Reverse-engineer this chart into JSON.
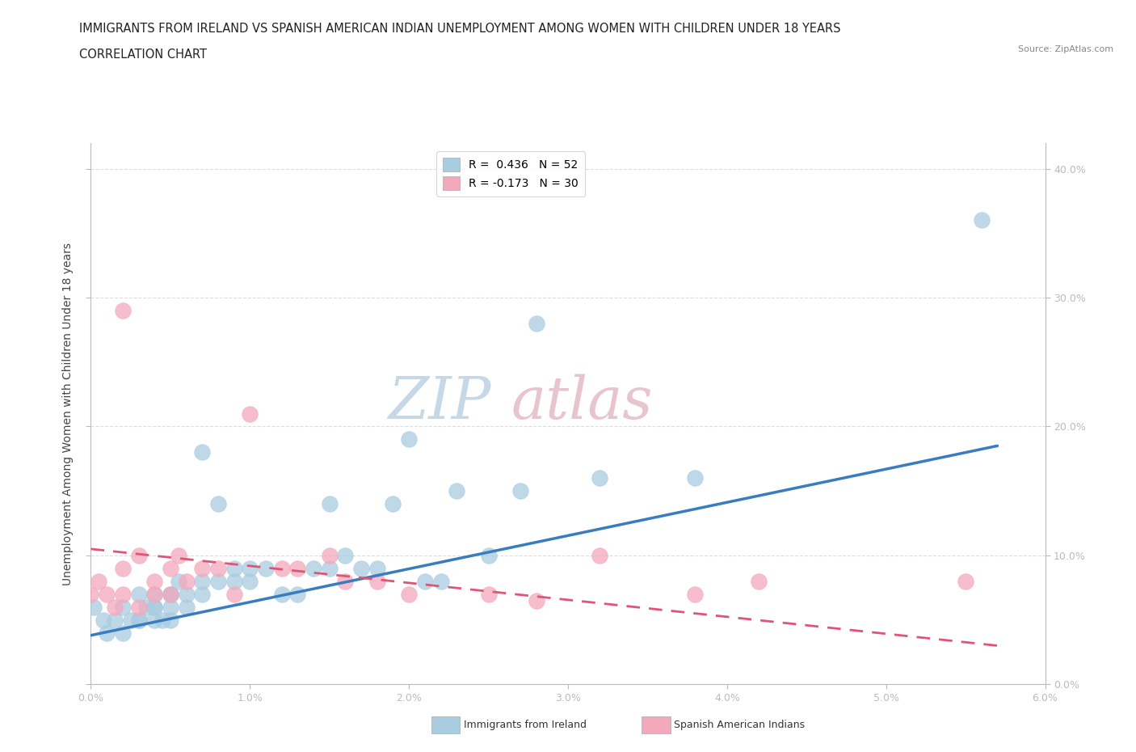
{
  "title_line1": "IMMIGRANTS FROM IRELAND VS SPANISH AMERICAN INDIAN UNEMPLOYMENT AMONG WOMEN WITH CHILDREN UNDER 18 YEARS",
  "title_line2": "CORRELATION CHART",
  "source_text": "Source: ZipAtlas.com",
  "ylabel": "Unemployment Among Women with Children Under 18 years",
  "xlim": [
    0.0,
    0.06
  ],
  "ylim": [
    0.0,
    0.42
  ],
  "xtick_labels": [
    "0.0%",
    "1.0%",
    "2.0%",
    "3.0%",
    "4.0%",
    "5.0%",
    "6.0%"
  ],
  "ytick_right_labels": [
    "0.0%",
    "10.0%",
    "20.0%",
    "30.0%",
    "40.0%"
  ],
  "xtick_values": [
    0.0,
    0.01,
    0.02,
    0.03,
    0.04,
    0.05,
    0.06
  ],
  "ytick_values": [
    0.0,
    0.1,
    0.2,
    0.3,
    0.4
  ],
  "legend_entries": [
    {
      "label": "R =  0.436   N = 52",
      "color": "#a8cce0"
    },
    {
      "label": "R = -0.173   N = 30",
      "color": "#f4a8bc"
    }
  ],
  "ireland_color": "#a8cce0",
  "spanish_color": "#f4a8bc",
  "ireland_line_color": "#3a7dbf",
  "spanish_line_color": "#e05575",
  "ireland_scatter_x": [
    0.0002,
    0.0008,
    0.001,
    0.0015,
    0.002,
    0.002,
    0.0025,
    0.003,
    0.003,
    0.003,
    0.0035,
    0.004,
    0.004,
    0.004,
    0.004,
    0.0045,
    0.005,
    0.005,
    0.005,
    0.005,
    0.0055,
    0.006,
    0.006,
    0.007,
    0.007,
    0.007,
    0.008,
    0.008,
    0.009,
    0.009,
    0.01,
    0.01,
    0.011,
    0.012,
    0.013,
    0.014,
    0.015,
    0.015,
    0.016,
    0.017,
    0.018,
    0.019,
    0.02,
    0.021,
    0.022,
    0.023,
    0.025,
    0.027,
    0.028,
    0.032,
    0.038,
    0.056
  ],
  "ireland_scatter_y": [
    0.06,
    0.05,
    0.04,
    0.05,
    0.06,
    0.04,
    0.05,
    0.05,
    0.07,
    0.05,
    0.06,
    0.05,
    0.06,
    0.06,
    0.07,
    0.05,
    0.06,
    0.07,
    0.05,
    0.07,
    0.08,
    0.06,
    0.07,
    0.07,
    0.08,
    0.18,
    0.08,
    0.14,
    0.08,
    0.09,
    0.08,
    0.09,
    0.09,
    0.07,
    0.07,
    0.09,
    0.14,
    0.09,
    0.1,
    0.09,
    0.09,
    0.14,
    0.19,
    0.08,
    0.08,
    0.15,
    0.1,
    0.15,
    0.28,
    0.16,
    0.16,
    0.36
  ],
  "spanish_scatter_x": [
    0.0,
    0.0005,
    0.001,
    0.0015,
    0.002,
    0.002,
    0.003,
    0.003,
    0.004,
    0.004,
    0.005,
    0.005,
    0.0055,
    0.006,
    0.007,
    0.008,
    0.009,
    0.01,
    0.012,
    0.013,
    0.015,
    0.016,
    0.018,
    0.02,
    0.025,
    0.028,
    0.032,
    0.038,
    0.042,
    0.055
  ],
  "spanish_scatter_y": [
    0.07,
    0.08,
    0.07,
    0.06,
    0.07,
    0.09,
    0.06,
    0.1,
    0.07,
    0.08,
    0.07,
    0.09,
    0.1,
    0.08,
    0.09,
    0.09,
    0.07,
    0.21,
    0.09,
    0.09,
    0.1,
    0.08,
    0.08,
    0.07,
    0.07,
    0.065,
    0.1,
    0.07,
    0.08,
    0.08
  ],
  "spanish_outlier_x": [
    0.002
  ],
  "spanish_outlier_y": [
    0.29
  ],
  "ireland_trend_x": [
    0.0,
    0.057
  ],
  "ireland_trend_y": [
    0.038,
    0.185
  ],
  "spanish_trend_x": [
    0.0,
    0.057
  ],
  "spanish_trend_y": [
    0.105,
    0.03
  ],
  "background_color": "#ffffff",
  "grid_color": "#dddddd",
  "title_fontsize": 10.5,
  "subtitle_fontsize": 10.5,
  "axis_label_fontsize": 10,
  "tick_fontsize": 9,
  "legend_fontsize": 10,
  "watermark_zip_color": "#c5d8e8",
  "watermark_atlas_color": "#e8c5cc"
}
